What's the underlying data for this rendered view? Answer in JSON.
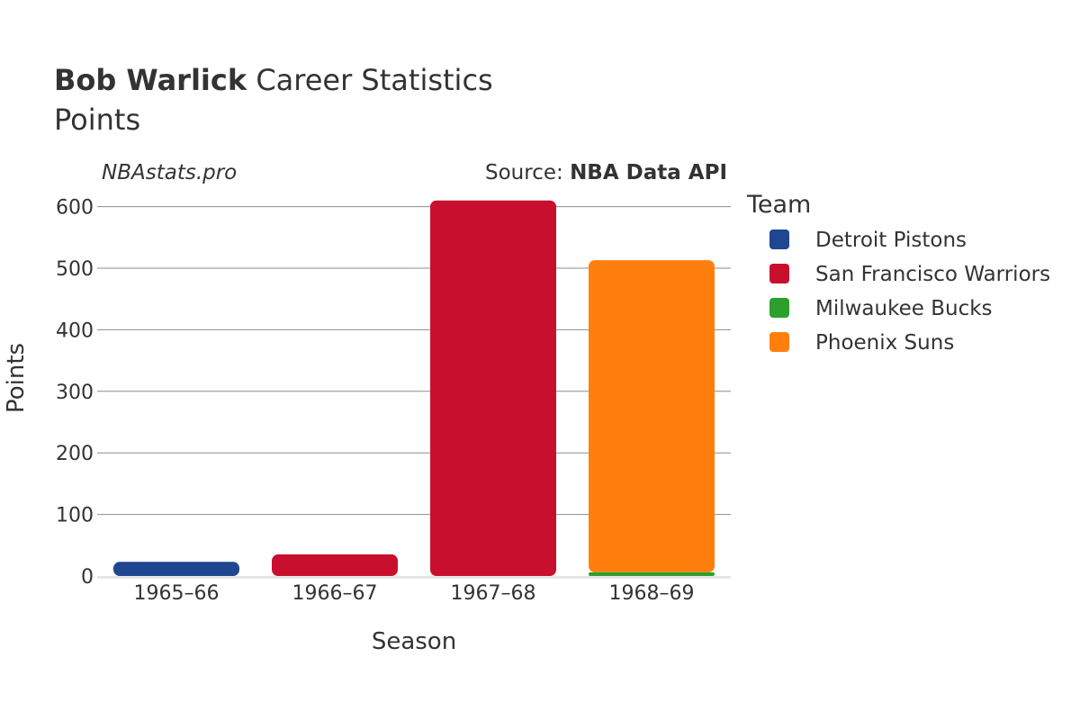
{
  "header": {
    "title_bold": "Bob Warlick",
    "title_rest": " Career Statistics",
    "subtitle": "Points"
  },
  "credits": {
    "site": "NBAstats.pro",
    "source_prefix": "Source: ",
    "source_name": "NBA Data API"
  },
  "chart_data": {
    "type": "bar",
    "stacked": true,
    "title": "Bob Warlick Career Statistics",
    "subtitle": "Points",
    "xlabel": "Season",
    "ylabel": "Points",
    "ylim": [
      0,
      620
    ],
    "yticks": [
      0,
      100,
      200,
      300,
      400,
      500,
      600
    ],
    "grid": true,
    "legend_title": "Team",
    "legend_position": "right",
    "categories": [
      "1965–66",
      "1966–67",
      "1967–68",
      "1968–69"
    ],
    "series": [
      {
        "name": "Detroit Pistons",
        "color": "#1f4690",
        "values": [
          23,
          0,
          0,
          0
        ]
      },
      {
        "name": "San Francisco Warriors",
        "color": "#c8102e",
        "values": [
          0,
          35,
          610,
          0
        ]
      },
      {
        "name": "Milwaukee Bucks",
        "color": "#2ca02c",
        "values": [
          0,
          0,
          0,
          6
        ]
      },
      {
        "name": "Phoenix Suns",
        "color": "#ff7f0e",
        "values": [
          0,
          0,
          0,
          507
        ]
      }
    ]
  }
}
